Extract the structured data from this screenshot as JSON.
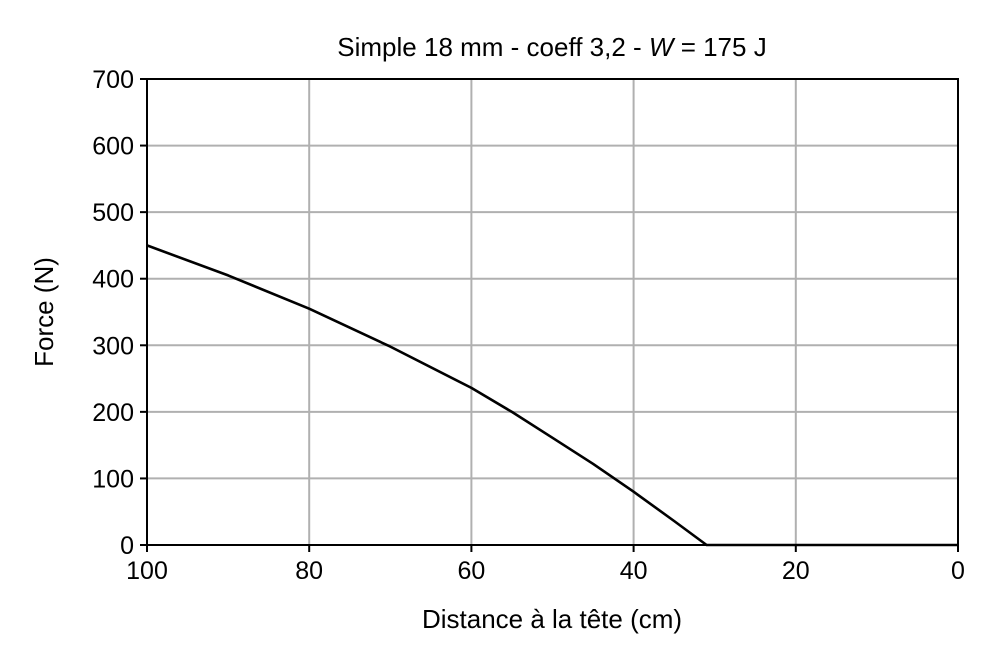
{
  "chart_data": {
    "type": "line",
    "title": {
      "prefix": "Simple 18 mm - coeff 3,2 - ",
      "var": "W",
      "suffix": " = 175 J"
    },
    "xlabel": "Distance à la tête (cm)",
    "ylabel": "Force (N)",
    "xlim": [
      100,
      0
    ],
    "ylim": [
      0,
      700
    ],
    "xticks": [
      100,
      80,
      60,
      40,
      20,
      0
    ],
    "yticks": [
      0,
      100,
      200,
      300,
      400,
      500,
      600,
      700
    ],
    "grid": true,
    "series": [
      {
        "color": "#000000",
        "x": [
          100,
          90,
          80,
          70,
          60,
          55,
          50,
          45,
          40,
          35,
          31,
          30,
          20,
          10,
          0
        ],
        "y": [
          450,
          405,
          355,
          298,
          236,
          200,
          161,
          122,
          80,
          36,
          0,
          0,
          0,
          0,
          0
        ]
      }
    ]
  }
}
